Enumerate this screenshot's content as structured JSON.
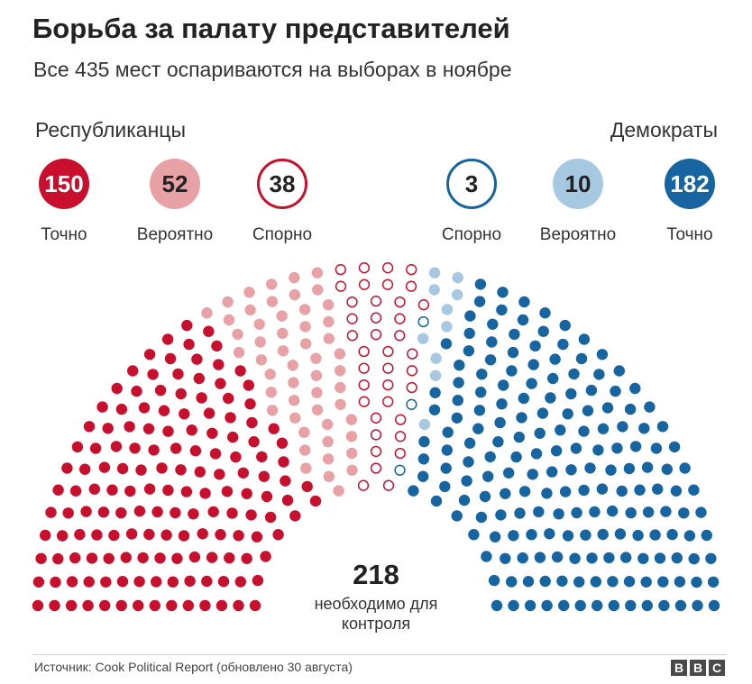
{
  "title": "Борьба за палату представителей",
  "subtitle": "Все 435 мест оспариваются на выборах в ноябре",
  "parties": {
    "republicans": "Республиканцы",
    "democrats": "Демократы"
  },
  "chart_data": {
    "type": "hemicycle",
    "total_seats": 435,
    "categories": [
      {
        "party": "Республиканцы",
        "label": "Точно",
        "value": 150,
        "color": "#c8102e",
        "style": "filled"
      },
      {
        "party": "Республиканцы",
        "label": "Вероятно",
        "value": 52,
        "color": "#e8a2a6",
        "style": "filled"
      },
      {
        "party": "Республиканцы",
        "label": "Спорно",
        "value": 38,
        "color": "#c8102e",
        "style": "outline"
      },
      {
        "party": "Демократы",
        "label": "Спорно",
        "value": 3,
        "color": "#1664a0",
        "style": "outline"
      },
      {
        "party": "Демократы",
        "label": "Вероятно",
        "value": 10,
        "color": "#a6c8e0",
        "style": "filled"
      },
      {
        "party": "Демократы",
        "label": "Точно",
        "value": 182,
        "color": "#1664a0",
        "style": "filled"
      }
    ],
    "majority": {
      "value": "218",
      "label": "необходимо для контроля"
    }
  },
  "source": "Источник: Cook Political Report (обновлено 30 августа)",
  "logo": [
    "B",
    "B",
    "C"
  ]
}
